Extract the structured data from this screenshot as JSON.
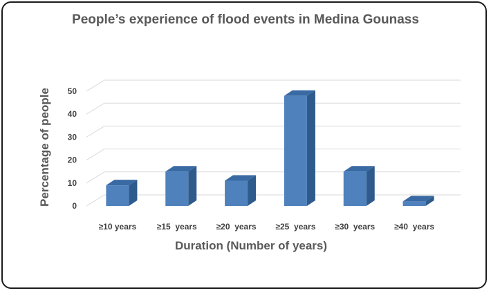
{
  "chart_data": {
    "type": "bar",
    "title": "People’s experience of flood events in Medina Gounass",
    "xlabel": "Duration (Number of years)",
    "ylabel": "Percentage of people",
    "categories": [
      "≥10 years",
      "≥15  years",
      "≥20  years",
      "≥25  years",
      "≥30  years",
      "≥40  years"
    ],
    "values": [
      9,
      15,
      11,
      48,
      15,
      2
    ],
    "ylim": [
      0,
      50
    ],
    "yticks": [
      0,
      10,
      20,
      30,
      40,
      50
    ],
    "grid": true,
    "legend": "none",
    "style": "3d-column",
    "colors": {
      "bar_front": "#4f81bd",
      "bar_side": "#2f5b8c",
      "bar_top": "#3a6aa3",
      "grid": "#d9d9d9"
    }
  }
}
